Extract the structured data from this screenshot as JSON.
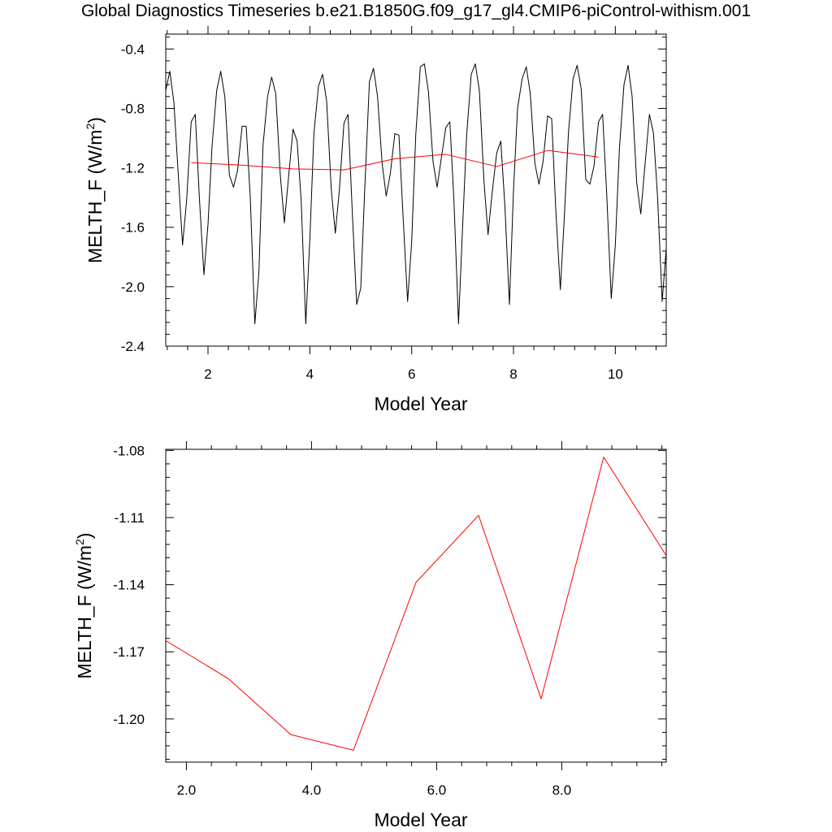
{
  "title": "Global Diagnostics Timeseries b.e21.B1850G.f09_g17_gl4.CMIP6-piControl-withism.001",
  "colors": {
    "monthly": "#000000",
    "annual": "#ff0000"
  },
  "chart_data": [
    {
      "type": "line",
      "xlabel": "Model Year",
      "ylabel": "MELTH_F (W/m",
      "ylabel_sup": "2",
      "ylabel_close": ")",
      "xlim": [
        1.17,
        11.0
      ],
      "ylim": [
        -2.4,
        -0.3
      ],
      "xticks": [
        2,
        4,
        6,
        8,
        10
      ],
      "xtick_labels": [
        "2",
        "4",
        "6",
        "8",
        "10"
      ],
      "yticks": [
        -2.4,
        -2.0,
        -1.6,
        -1.2,
        -0.8,
        -0.4
      ],
      "ytick_labels": [
        "-2.4",
        "-2.0",
        "-1.6",
        "-1.2",
        "-0.8",
        "-0.4"
      ],
      "series": [
        {
          "color": "#000000",
          "x": [
            1.17,
            1.25,
            1.33,
            1.42,
            1.5,
            1.58,
            1.67,
            1.75,
            1.83,
            1.92,
            2.0,
            2.08,
            2.17,
            2.25,
            2.33,
            2.42,
            2.5,
            2.58,
            2.67,
            2.75,
            2.83,
            2.92,
            3.0,
            3.08,
            3.17,
            3.25,
            3.33,
            3.42,
            3.5,
            3.58,
            3.67,
            3.75,
            3.83,
            3.92,
            4.0,
            4.08,
            4.17,
            4.25,
            4.33,
            4.42,
            4.5,
            4.58,
            4.67,
            4.75,
            4.83,
            4.92,
            5.0,
            5.08,
            5.17,
            5.25,
            5.33,
            5.42,
            5.5,
            5.58,
            5.67,
            5.75,
            5.83,
            5.92,
            6.0,
            6.08,
            6.17,
            6.25,
            6.33,
            6.42,
            6.5,
            6.58,
            6.67,
            6.75,
            6.83,
            6.92,
            7.0,
            7.08,
            7.17,
            7.25,
            7.33,
            7.42,
            7.5,
            7.58,
            7.67,
            7.75,
            7.83,
            7.92,
            8.0,
            8.08,
            8.17,
            8.25,
            8.33,
            8.42,
            8.5,
            8.58,
            8.67,
            8.75,
            8.83,
            8.92,
            9.0,
            9.08,
            9.17,
            9.25,
            9.33,
            9.42,
            9.5,
            9.58,
            9.67,
            9.75,
            9.83,
            9.92,
            10.0,
            10.08,
            10.17,
            10.25,
            10.33,
            10.42,
            10.5,
            10.58,
            10.67,
            10.75,
            10.83,
            10.92,
            11.0
          ],
          "values": [
            -0.68,
            -0.55,
            -0.76,
            -1.27,
            -1.72,
            -1.42,
            -0.89,
            -0.84,
            -1.4,
            -1.92,
            -1.58,
            -1.05,
            -0.68,
            -0.55,
            -0.72,
            -1.25,
            -1.33,
            -1.22,
            -0.92,
            -0.92,
            -1.4,
            -2.25,
            -1.9,
            -1.05,
            -0.72,
            -0.59,
            -0.7,
            -1.25,
            -1.57,
            -1.27,
            -0.94,
            -1.02,
            -1.42,
            -2.25,
            -1.68,
            -0.97,
            -0.65,
            -0.57,
            -0.75,
            -1.34,
            -1.64,
            -1.35,
            -0.9,
            -0.84,
            -1.47,
            -2.12,
            -2.01,
            -1.33,
            -0.62,
            -0.53,
            -0.72,
            -1.17,
            -1.39,
            -1.24,
            -0.97,
            -0.98,
            -1.52,
            -2.1,
            -1.7,
            -0.98,
            -0.52,
            -0.5,
            -0.69,
            -1.16,
            -1.33,
            -1.14,
            -0.93,
            -0.89,
            -1.42,
            -2.25,
            -1.6,
            -0.98,
            -0.57,
            -0.5,
            -0.68,
            -1.29,
            -1.65,
            -1.37,
            -1.1,
            -1.02,
            -1.45,
            -2.12,
            -1.35,
            -0.8,
            -0.6,
            -0.52,
            -0.7,
            -1.17,
            -1.31,
            -1.16,
            -0.85,
            -0.87,
            -1.48,
            -2.02,
            -1.52,
            -0.96,
            -0.6,
            -0.51,
            -0.67,
            -1.28,
            -1.31,
            -1.19,
            -0.89,
            -0.84,
            -1.37,
            -2.08,
            -1.72,
            -1.07,
            -0.64,
            -0.51,
            -0.72,
            -1.3,
            -1.51,
            -1.19,
            -0.84,
            -0.97,
            -1.4,
            -2.1,
            -1.74
          ]
        },
        {
          "color": "#ff0000",
          "x": [
            1.67,
            2.67,
            3.67,
            4.67,
            5.67,
            6.67,
            7.67,
            8.67,
            9.67
          ],
          "values": [
            -1.165,
            -1.182,
            -1.207,
            -1.214,
            -1.139,
            -1.109,
            -1.191,
            -1.083,
            -1.127
          ]
        }
      ]
    },
    {
      "type": "line",
      "xlabel": "Model Year",
      "ylabel": "MELTH_F (W/m",
      "ylabel_sup": "2",
      "ylabel_close": ")",
      "xlim": [
        1.67,
        9.67
      ],
      "ylim": [
        -1.2193,
        -1.0795
      ],
      "xticks": [
        2.0,
        4.0,
        6.0,
        8.0
      ],
      "xtick_labels": [
        "2.0",
        "4.0",
        "6.0",
        "8.0"
      ],
      "yticks": [
        -1.2,
        -1.17,
        -1.14,
        -1.11,
        -1.08
      ],
      "ytick_labels": [
        "-1.20",
        "-1.17",
        "-1.14",
        "-1.11",
        "-1.08"
      ],
      "series": [
        {
          "color": "#ff0000",
          "x": [
            1.67,
            2.67,
            3.67,
            4.67,
            5.67,
            6.67,
            7.67,
            8.67,
            9.67
          ],
          "values": [
            -1.165,
            -1.182,
            -1.207,
            -1.214,
            -1.139,
            -1.109,
            -1.191,
            -1.083,
            -1.127
          ]
        }
      ]
    }
  ]
}
